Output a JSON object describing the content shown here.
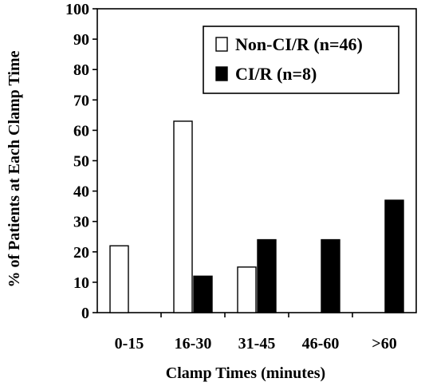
{
  "chart_data": {
    "type": "bar",
    "categories": [
      "0-15",
      "16-30",
      "31-45",
      "46-60",
      ">60"
    ],
    "series": [
      {
        "name": "Non-CI/R (n=46)",
        "color": "#ffffff",
        "values": [
          22,
          63,
          15,
          0,
          0
        ]
      },
      {
        "name": "CI/R (n=8)",
        "color": "#000000",
        "values": [
          0,
          12,
          24,
          24,
          37
        ]
      }
    ],
    "xlabel": "Clamp Times (minutes)",
    "ylabel": "% of Patients at Each Clamp Time",
    "ylim": [
      0,
      100
    ],
    "yticks": [
      0,
      10,
      20,
      30,
      40,
      50,
      60,
      70,
      80,
      90,
      100
    ],
    "legend_position": "top-right",
    "grid": false
  }
}
